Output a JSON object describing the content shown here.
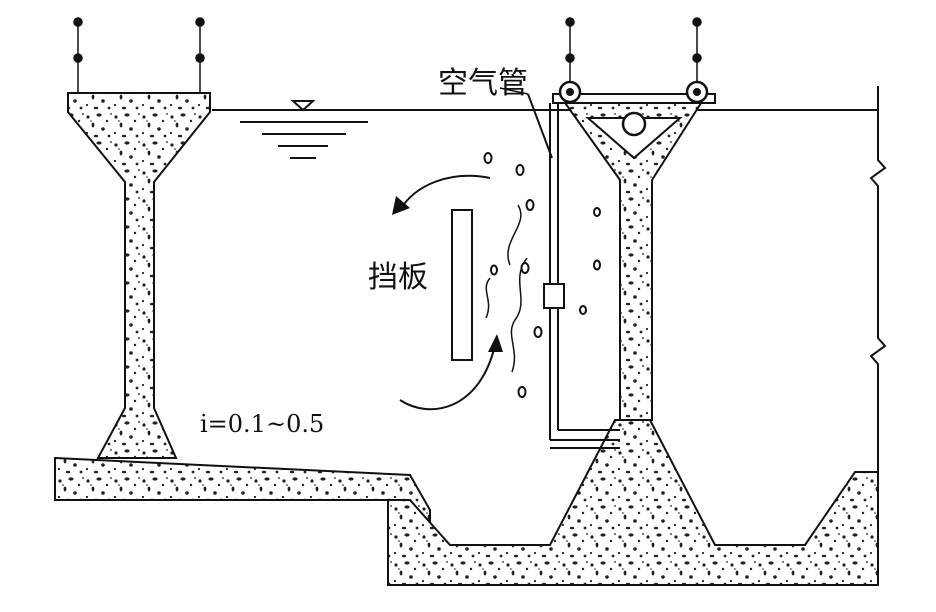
{
  "labels": {
    "air_pipe": "空气管",
    "baffle": "挡板",
    "slope": "i=0.1~0.5"
  },
  "colors": {
    "line": "#111111",
    "fill": "#ffffff",
    "concrete_speckle": "#222222"
  }
}
